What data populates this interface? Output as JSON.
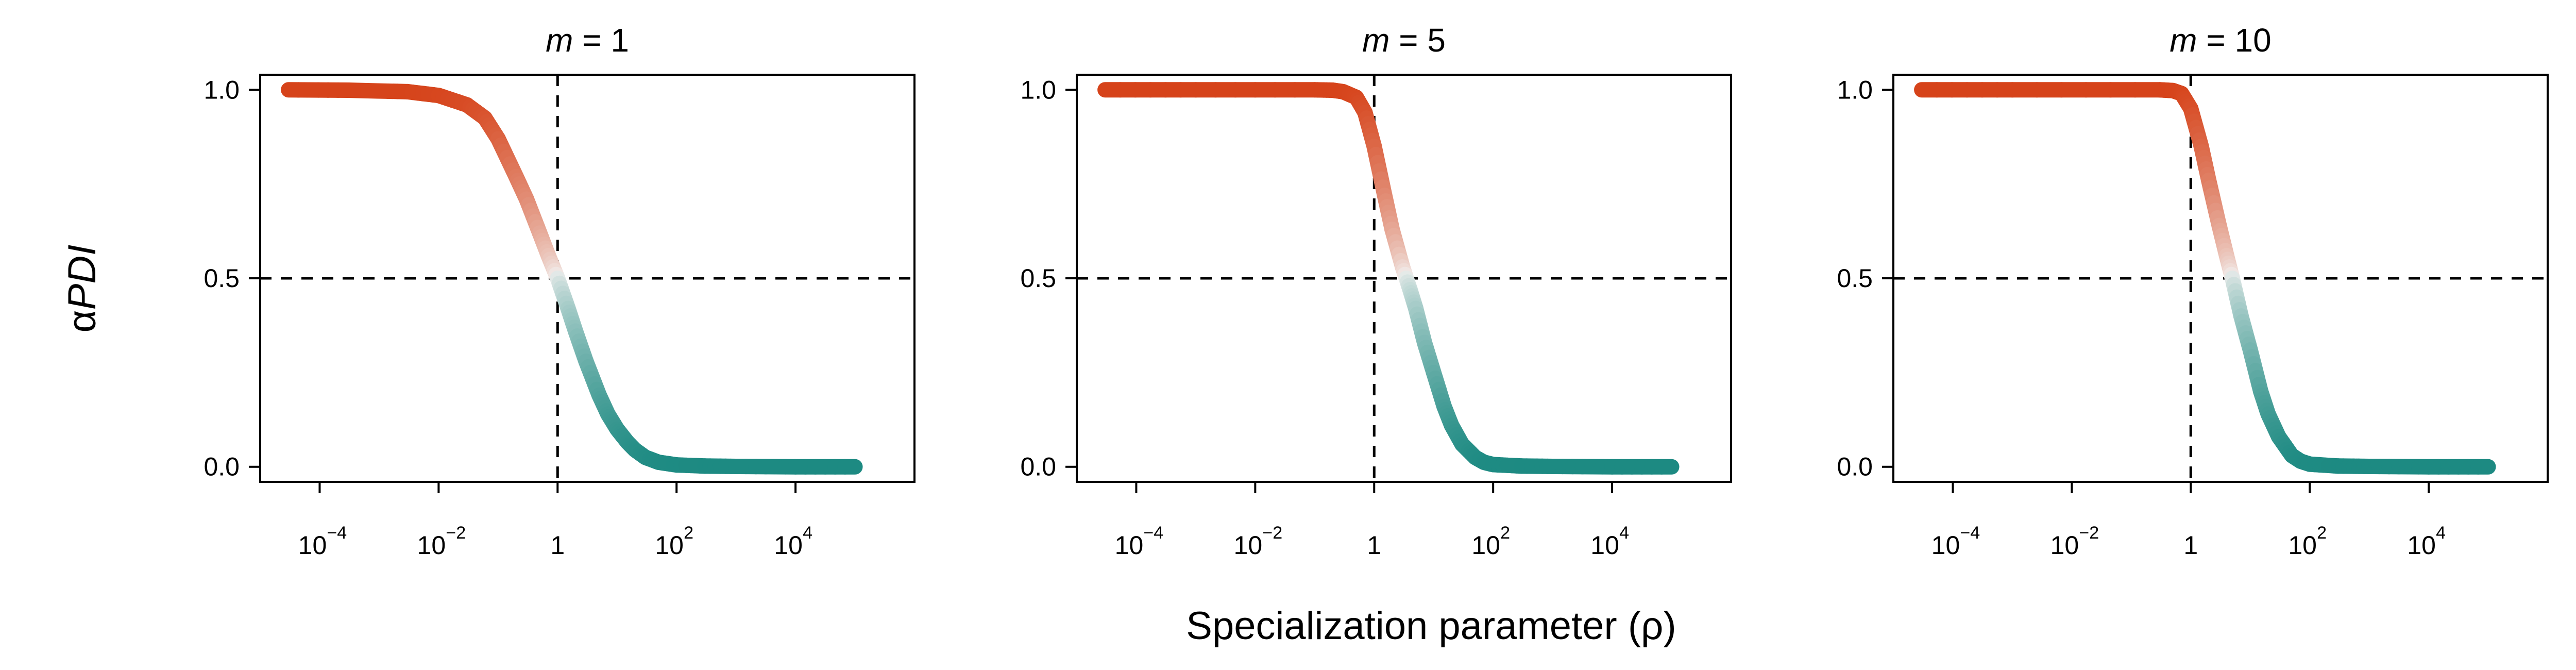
{
  "figure": {
    "ylabel_greek": "α",
    "ylabel_main": "PDI",
    "xlabel": "Specialization parameter (ρ)"
  },
  "chart_data": [
    {
      "type": "line",
      "title_var": "m",
      "title_value": "= 1",
      "xscale": "log",
      "xlim": [
        1e-05,
        1000000
      ],
      "ylim": [
        -0.04,
        1.04
      ],
      "x_ticks": [
        {
          "value": 0.0001,
          "base": "10",
          "exp": "−4"
        },
        {
          "value": 0.01,
          "base": "10",
          "exp": "−2"
        },
        {
          "value": 1,
          "base": "1",
          "exp": ""
        },
        {
          "value": 100,
          "base": "10",
          "exp": "2"
        },
        {
          "value": 10000,
          "base": "10",
          "exp": "4"
        }
      ],
      "y_ticks": [
        "0.0",
        "0.5",
        "1.0"
      ],
      "reference_lines": {
        "x": 1,
        "y": 0.5
      },
      "x": [
        3e-05,
        0.0003,
        0.003,
        0.01,
        0.03,
        0.06,
        0.1,
        0.2,
        0.3,
        0.5,
        0.7,
        1,
        1.5,
        2,
        3,
        5,
        7,
        10,
        15,
        20,
        30,
        50,
        100,
        300,
        1000,
        10000,
        100000
      ],
      "y": [
        1.0,
        0.999,
        0.995,
        0.985,
        0.96,
        0.925,
        0.87,
        0.77,
        0.71,
        0.62,
        0.56,
        0.5,
        0.42,
        0.36,
        0.28,
        0.19,
        0.14,
        0.1,
        0.065,
        0.045,
        0.025,
        0.012,
        0.005,
        0.002,
        0.001,
        0.0,
        0.0
      ]
    },
    {
      "type": "line",
      "title_var": "m",
      "title_value": "= 5",
      "xscale": "log",
      "xlim": [
        1e-05,
        1000000
      ],
      "ylim": [
        -0.04,
        1.04
      ],
      "x_ticks": [
        {
          "value": 0.0001,
          "base": "10",
          "exp": "−4"
        },
        {
          "value": 0.01,
          "base": "10",
          "exp": "−2"
        },
        {
          "value": 1,
          "base": "1",
          "exp": ""
        },
        {
          "value": 100,
          "base": "10",
          "exp": "2"
        },
        {
          "value": 10000,
          "base": "10",
          "exp": "4"
        }
      ],
      "y_ticks": [
        "0.0",
        "0.5",
        "1.0"
      ],
      "reference_lines": {
        "x": 1,
        "y": 0.5
      },
      "x": [
        3e-05,
        0.001,
        0.1,
        0.2,
        0.3,
        0.5,
        0.7,
        1,
        1.5,
        2,
        3,
        4,
        5,
        7,
        10,
        15,
        20,
        30,
        50,
        70,
        100,
        300,
        1000,
        10000,
        100000
      ],
      "y": [
        1.0,
        1.0,
        1.0,
        0.999,
        0.995,
        0.98,
        0.94,
        0.85,
        0.72,
        0.63,
        0.53,
        0.47,
        0.42,
        0.33,
        0.25,
        0.16,
        0.11,
        0.06,
        0.025,
        0.012,
        0.006,
        0.002,
        0.001,
        0.0,
        0.0
      ]
    },
    {
      "type": "line",
      "title_var": "m",
      "title_value": "= 10",
      "xscale": "log",
      "xlim": [
        1e-05,
        1000000
      ],
      "ylim": [
        -0.04,
        1.04
      ],
      "x_ticks": [
        {
          "value": 0.0001,
          "base": "10",
          "exp": "−4"
        },
        {
          "value": 0.01,
          "base": "10",
          "exp": "−2"
        },
        {
          "value": 1,
          "base": "1",
          "exp": ""
        },
        {
          "value": 100,
          "base": "10",
          "exp": "2"
        },
        {
          "value": 10000,
          "base": "10",
          "exp": "4"
        }
      ],
      "y_ticks": [
        "0.0",
        "0.5",
        "1.0"
      ],
      "reference_lines": {
        "x": 1,
        "y": 0.5
      },
      "x": [
        3e-05,
        0.001,
        0.3,
        0.5,
        0.7,
        1,
        1.5,
        2,
        3,
        4,
        5,
        7,
        10,
        15,
        20,
        30,
        50,
        70,
        100,
        300,
        1000,
        10000,
        100000
      ],
      "y": [
        1.0,
        1.0,
        1.0,
        0.998,
        0.99,
        0.95,
        0.85,
        0.76,
        0.64,
        0.56,
        0.5,
        0.4,
        0.31,
        0.2,
        0.14,
        0.08,
        0.03,
        0.015,
        0.007,
        0.002,
        0.001,
        0.0,
        0.0
      ]
    }
  ],
  "colors": {
    "high": "#d6431a",
    "mid": "#f2f0ef",
    "low": "#1d8a82"
  }
}
